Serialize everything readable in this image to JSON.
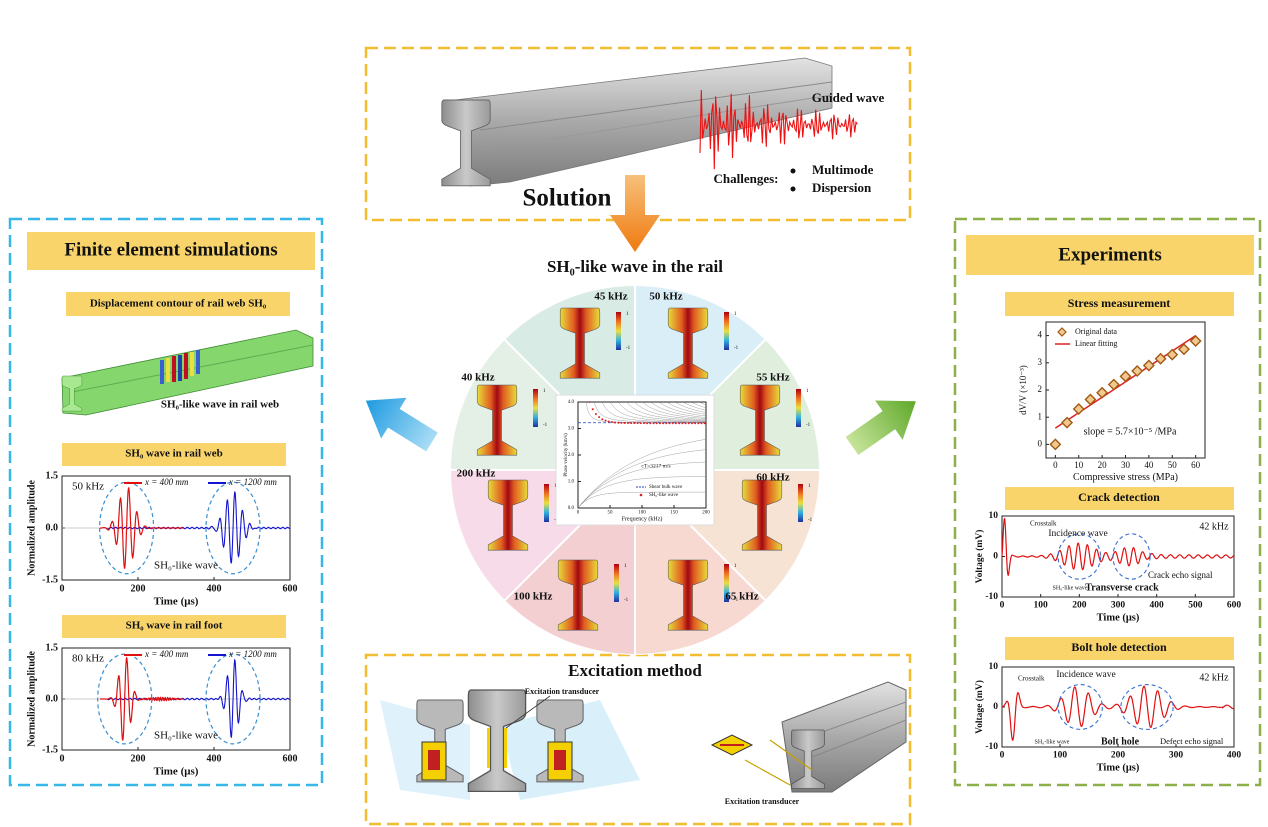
{
  "top": {
    "rail_label": "Guided wave",
    "challenges_label": "Challenges:",
    "challenges": [
      "Multimode",
      "Dispersion"
    ],
    "solution": "Solution"
  },
  "simulations": {
    "title": "Finite element simulations",
    "contour": {
      "title": "Displacement contour of rail web SH₀",
      "label": "SH₀-like wave in rail web"
    },
    "plots": [
      {
        "title": "SH₀ wave in rail web",
        "frequency": "50 kHz",
        "legend": [
          "x = 400 mm",
          "x = 1200 mm"
        ],
        "annotation": "SH₀-like wave",
        "xlabel": "Time (μs)",
        "ylabel": "Normalized amplitude",
        "xlim": [
          0,
          600
        ],
        "ylim": [
          -1.5,
          1.5
        ],
        "xticks": [
          0,
          200,
          400,
          600
        ],
        "yticks": [
          1.5,
          {
            "value": 0,
            "label": "0.0"
          },
          -1.5
        ]
      },
      {
        "title": "SH₀ wave in rail foot",
        "frequency": "80 kHz",
        "legend": [
          "x = 400 mm",
          "x = 1200 mm"
        ],
        "annotation": "SH₀-like wave",
        "xlabel": "Time (μs)",
        "ylabel": "Normalized amplitude",
        "xlim": [
          0,
          600
        ],
        "ylim": [
          -1.5,
          1.5
        ],
        "xticks": [
          0,
          200,
          400,
          600
        ],
        "yticks": [
          1.5,
          {
            "value": 0,
            "label": "0.0"
          },
          -1.5
        ]
      }
    ]
  },
  "center": {
    "title": "SH₀-like wave in the rail",
    "frequencies": [
      "45 kHz",
      "50 kHz",
      "55 kHz",
      "60 kHz",
      "65 kHz",
      "100 kHz",
      "200 kHz",
      "40 kHz"
    ],
    "colorbar": [
      "1",
      "-1"
    ],
    "dispersion": {
      "xlabel": "Frequency (kHz)",
      "ylabel": "Phase velocity (km/s)",
      "xlim": [
        0,
        200
      ],
      "ylim": [
        0,
        4
      ],
      "xticks": [
        0,
        50,
        100,
        150,
        200
      ],
      "yticks": [
        {
          "value": 0,
          "label": "0.0"
        },
        {
          "value": 1,
          "label": "1.0"
        },
        {
          "value": 2,
          "label": "2.0"
        },
        {
          "value": 3,
          "label": "3.0"
        },
        {
          "value": 4,
          "label": "4.0"
        }
      ],
      "annotation": "cT=3217 m/s",
      "legend": [
        "Shear bulk wave",
        "SH₀-like wave"
      ]
    }
  },
  "experiments": {
    "title": "Experiments",
    "stress": {
      "title": "Stress measurement",
      "xlabel": "Compressive stress (MPa)",
      "ylabel": "dV/V (×10⁻³)",
      "xlim": [
        -4,
        64
      ],
      "ylim": [
        -0.5,
        4.5
      ],
      "xticks": [
        0,
        10,
        20,
        30,
        40,
        50,
        60
      ],
      "yticks": [
        0,
        1,
        2,
        3,
        4
      ],
      "legend": [
        "Original data",
        "Linear fitting"
      ],
      "annotation": "slope = 5.7×10⁻⁵ /MPa",
      "x": [
        0,
        5,
        10,
        15,
        20,
        25,
        30,
        35,
        40,
        45,
        50,
        55,
        60
      ],
      "y": [
        0.0,
        0.8,
        1.3,
        1.65,
        1.9,
        2.2,
        2.5,
        2.7,
        2.9,
        3.15,
        3.3,
        3.5,
        3.8
      ],
      "fit_x": [
        0,
        60
      ],
      "fit_y": [
        0.6,
        4.0
      ]
    },
    "crack": {
      "title": "Crack detection",
      "frequency": "42 kHz",
      "xlabel": "Time (μs)",
      "ylabel": "Voltage (mV)",
      "xlim": [
        0,
        600
      ],
      "ylim": [
        -10,
        10
      ],
      "xticks": [
        0,
        100,
        200,
        300,
        400,
        500,
        600
      ],
      "yticks": [
        10,
        0,
        -10
      ],
      "annotations": [
        "Crosstalk",
        "Incidence wave",
        "SH₀-like wave",
        "Transverse crack",
        "Crack echo signal"
      ]
    },
    "bolt": {
      "title": "Bolt hole detection",
      "frequency": "42 kHz",
      "xlabel": "Time (μs)",
      "ylabel": "Voltage (mV)",
      "xlim": [
        0,
        400
      ],
      "ylim": [
        -10,
        10
      ],
      "xticks": [
        0,
        100,
        200,
        300,
        400
      ],
      "yticks": [
        10,
        0,
        -10
      ],
      "annotations": [
        "Crosstalk",
        "Incidence wave",
        "SH₀-like wave",
        "Bolt hole",
        "Defect echo signal"
      ]
    }
  },
  "excitation": {
    "title": "Excitation method",
    "transducer_labels": [
      "Excitation transducer",
      "Excitation transducer"
    ]
  }
}
